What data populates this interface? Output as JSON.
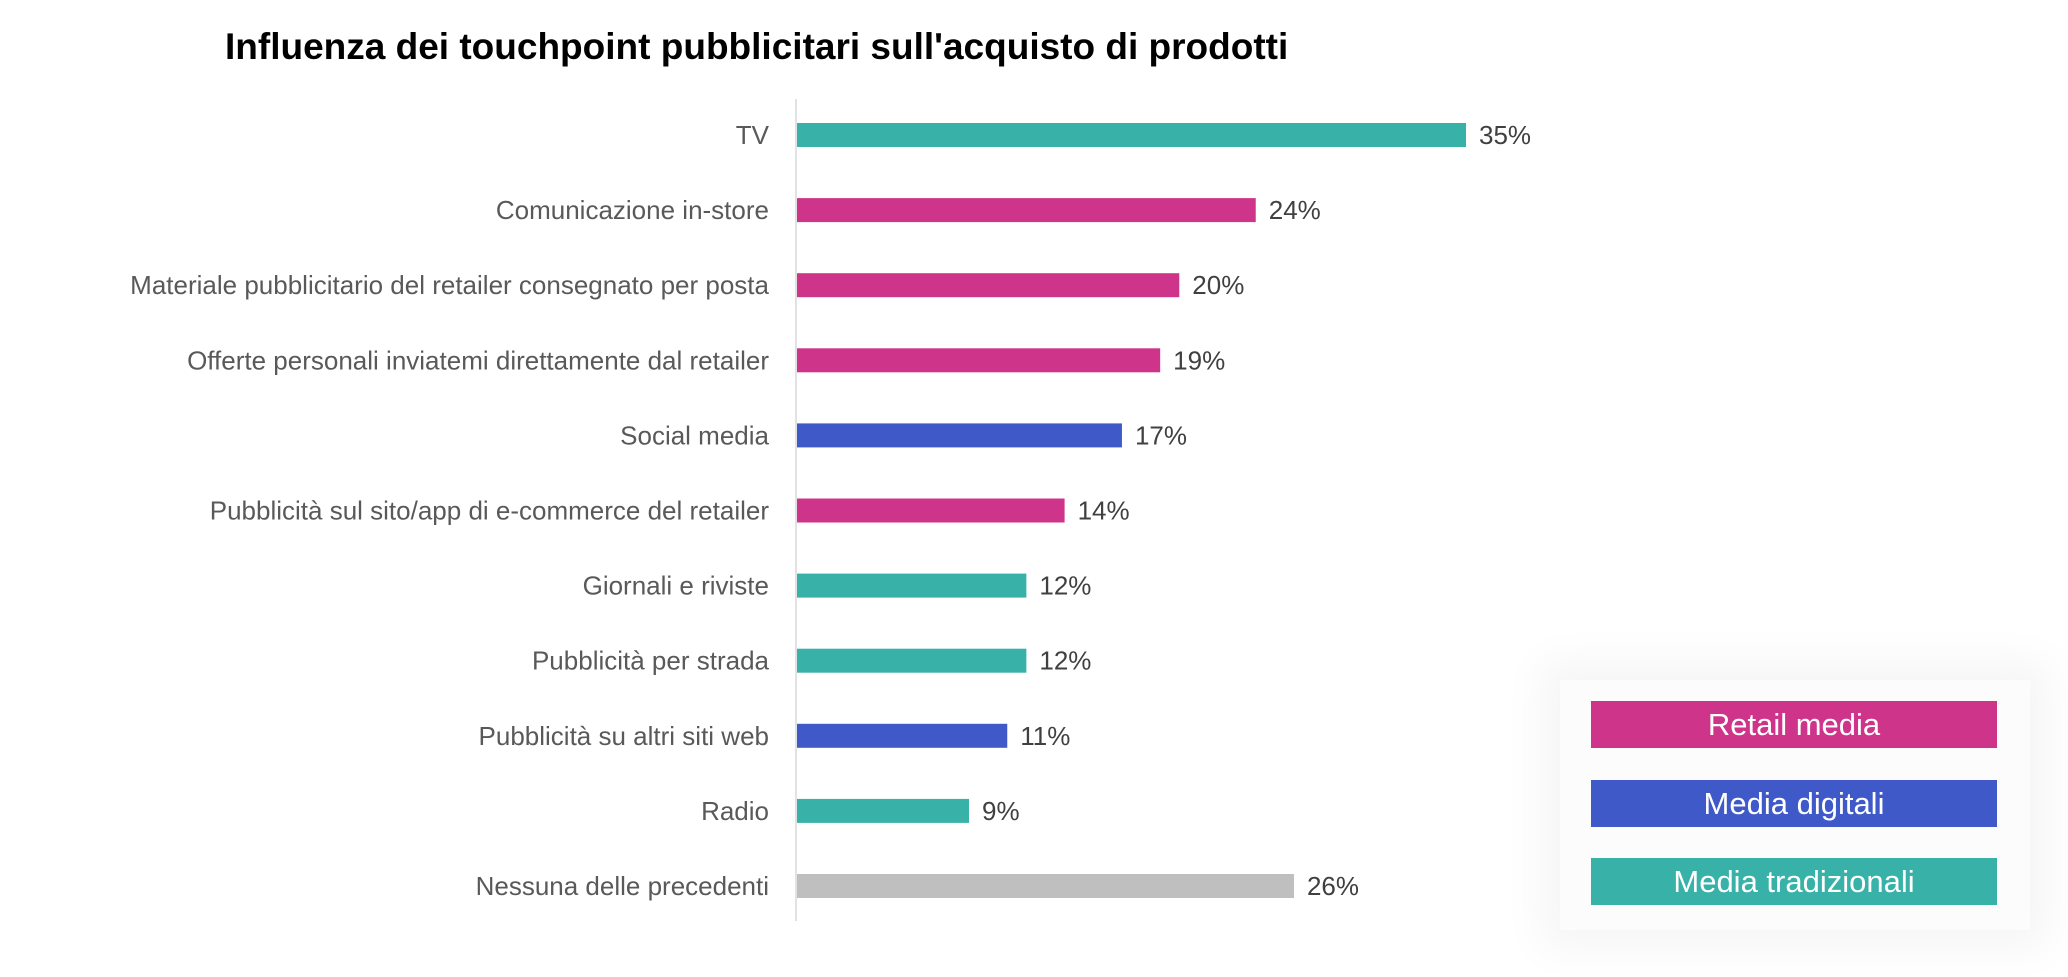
{
  "chart_data": {
    "type": "bar",
    "orientation": "horizontal",
    "title": "Influenza dei touchpoint pubblicitari sull'acquisto di prodotti",
    "xlabel": "",
    "ylabel": "",
    "xlim": [
      0,
      35
    ],
    "grid": false,
    "categories": [
      "TV",
      "Comunicazione in-store",
      "Materiale pubblicitario del retailer consegnato per posta",
      "Offerte personali inviatemi direttamente dal retailer",
      "Social media",
      "Pubblicità sul sito/app di e-commerce del retailer",
      "Giornali e riviste",
      "Pubblicità per strada",
      "Pubblicità su altri siti web",
      "Radio",
      "Nessuna delle precedenti"
    ],
    "values": [
      35,
      24,
      20,
      19,
      17,
      14,
      12,
      12,
      11,
      9,
      26
    ],
    "value_labels": [
      "35%",
      "24%",
      "20%",
      "19%",
      "17%",
      "14%",
      "12%",
      "12%",
      "11%",
      "9%",
      "26%"
    ],
    "groups": [
      "tradizionali",
      "retail",
      "retail",
      "retail",
      "digitali",
      "retail",
      "tradizionali",
      "tradizionali",
      "digitali",
      "tradizionali",
      "none"
    ],
    "legend_placement": "bottom-right",
    "legend": [
      {
        "key": "retail",
        "label": "Retail media",
        "color": "#CF348B"
      },
      {
        "key": "digitali",
        "label": "Media digitali",
        "color": "#3F5AC8"
      },
      {
        "key": "tradizionali",
        "label": "Media tradizionali",
        "color": "#38B2A8"
      }
    ],
    "colors": {
      "retail": "#CF348B",
      "digitali": "#3F5AC8",
      "tradizionali": "#38B2A8",
      "none": "#BFBFBF"
    }
  }
}
